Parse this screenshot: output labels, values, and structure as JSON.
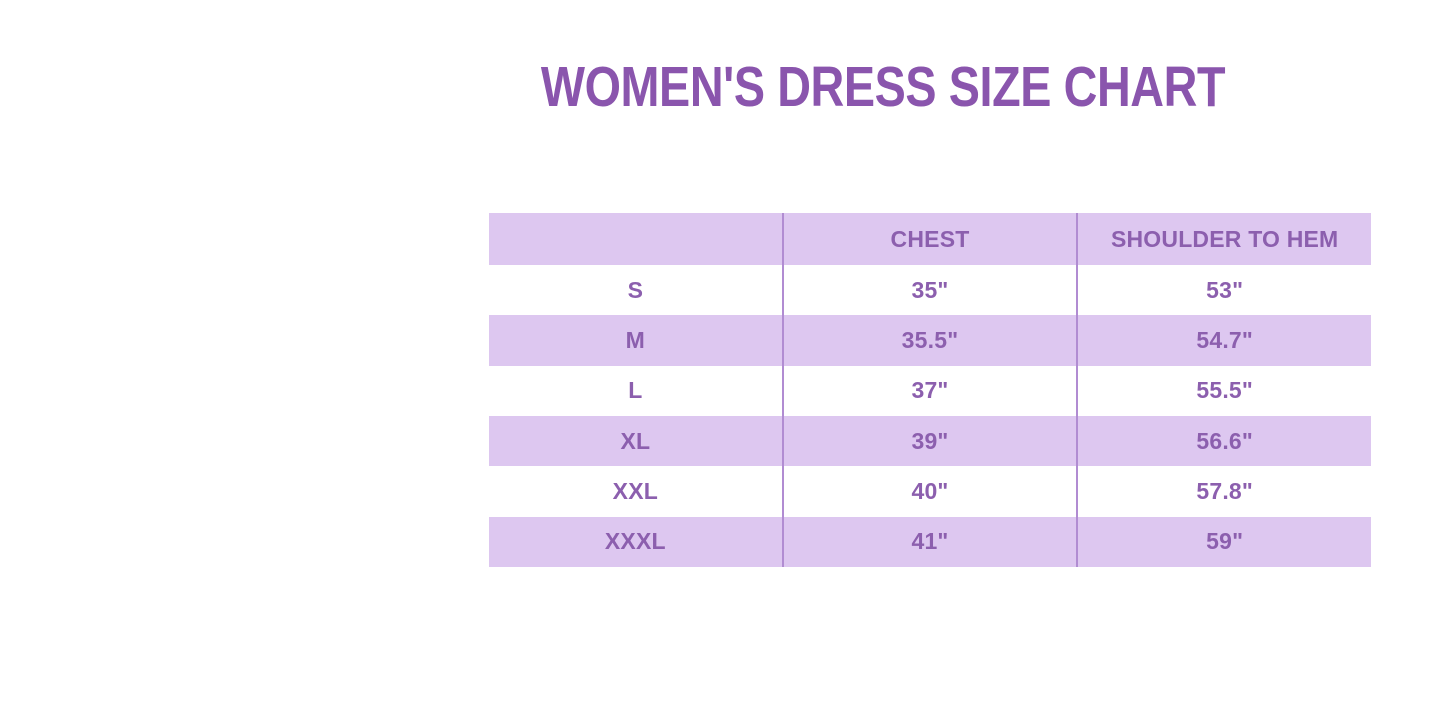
{
  "page": {
    "title": "WOMEN'S DRESS SIZE CHART"
  },
  "colors": {
    "title_purple": "#8a55ad",
    "text_purple": "#8c5fae",
    "band_lavender": "#ddc7f0",
    "column_divider": "#b18cd2",
    "background": "#ffffff"
  },
  "chart_data": {
    "type": "table",
    "title": "WOMEN'S DRESS SIZE CHART",
    "columns": [
      "",
      "CHEST",
      "SHOULDER TO HEM"
    ],
    "rows": [
      {
        "size": "S",
        "chest": "35\"",
        "shoulder_to_hem": "53\""
      },
      {
        "size": "M",
        "chest": "35.5\"",
        "shoulder_to_hem": "54.7\""
      },
      {
        "size": "L",
        "chest": "37\"",
        "shoulder_to_hem": "55.5\""
      },
      {
        "size": "XL",
        "chest": "39\"",
        "shoulder_to_hem": "56.6\""
      },
      {
        "size": "XXL",
        "chest": "40\"",
        "shoulder_to_hem": "57.8\""
      },
      {
        "size": "XXXL",
        "chest": "41\"",
        "shoulder_to_hem": "59\""
      }
    ],
    "layout_hints": {
      "header_background": "lavender",
      "row_striping": "white/lavender alternating starting white",
      "horizontal_gridlines": false,
      "vertical_gridlines": true,
      "text_alignment": "center"
    }
  }
}
